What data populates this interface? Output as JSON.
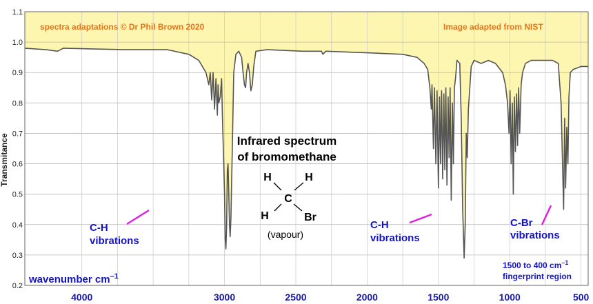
{
  "chart_data": {
    "type": "line",
    "ylabel": "Transmitance",
    "xlabel": "wavenumber  cm",
    "xlabel_sup": "–1",
    "xlim": [
      4400,
      450
    ],
    "ylim": [
      0.2,
      1.1
    ],
    "x_ticks": [
      4000,
      3000,
      2500,
      2000,
      1500,
      1000,
      500
    ],
    "y_ticks": [
      "0.2",
      "0.3",
      "0.4",
      "0.5",
      "0.6",
      "0.7",
      "0.8",
      "0.9",
      "1.0",
      "1.1"
    ],
    "grid": true,
    "fill_color": "#fdf6b0",
    "line_color": "#555555",
    "points": [
      [
        4400,
        0.98
      ],
      [
        4250,
        0.975
      ],
      [
        4170,
        0.97
      ],
      [
        4130,
        0.98
      ],
      [
        3700,
        0.975
      ],
      [
        3400,
        0.975
      ],
      [
        3250,
        0.96
      ],
      [
        3180,
        0.94
      ],
      [
        3130,
        0.9
      ],
      [
        3110,
        0.86
      ],
      [
        3100,
        0.9
      ],
      [
        3090,
        0.81
      ],
      [
        3080,
        0.9
      ],
      [
        3070,
        0.78
      ],
      [
        3060,
        0.88
      ],
      [
        3050,
        0.76
      ],
      [
        3045,
        0.86
      ],
      [
        3040,
        0.8
      ],
      [
        3030,
        0.82
      ],
      [
        3020,
        0.88
      ],
      [
        3015,
        0.76
      ],
      [
        3005,
        0.6
      ],
      [
        3000,
        0.5
      ],
      [
        2995,
        0.35
      ],
      [
        2990,
        0.32
      ],
      [
        2985,
        0.4
      ],
      [
        2980,
        0.58
      ],
      [
        2975,
        0.6
      ],
      [
        2970,
        0.5
      ],
      [
        2965,
        0.4
      ],
      [
        2960,
        0.36
      ],
      [
        2955,
        0.42
      ],
      [
        2945,
        0.65
      ],
      [
        2935,
        0.9
      ],
      [
        2920,
        0.96
      ],
      [
        2900,
        0.97
      ],
      [
        2880,
        0.95
      ],
      [
        2870,
        0.9
      ],
      [
        2860,
        0.86
      ],
      [
        2852,
        0.85
      ],
      [
        2845,
        0.9
      ],
      [
        2835,
        0.93
      ],
      [
        2825,
        0.9
      ],
      [
        2815,
        0.84
      ],
      [
        2805,
        0.86
      ],
      [
        2795,
        0.92
      ],
      [
        2780,
        0.97
      ],
      [
        2700,
        0.975
      ],
      [
        2450,
        0.97
      ],
      [
        2320,
        0.97
      ],
      [
        2310,
        0.96
      ],
      [
        2290,
        0.97
      ],
      [
        2000,
        0.965
      ],
      [
        1750,
        0.96
      ],
      [
        1650,
        0.95
      ],
      [
        1600,
        0.93
      ],
      [
        1575,
        0.91
      ],
      [
        1560,
        0.85
      ],
      [
        1550,
        0.78
      ],
      [
        1545,
        0.86
      ],
      [
        1535,
        0.65
      ],
      [
        1528,
        0.85
      ],
      [
        1518,
        0.6
      ],
      [
        1510,
        0.84
      ],
      [
        1500,
        0.52
      ],
      [
        1492,
        0.82
      ],
      [
        1485,
        0.6
      ],
      [
        1478,
        0.84
      ],
      [
        1470,
        0.55
      ],
      [
        1462,
        0.83
      ],
      [
        1455,
        0.58
      ],
      [
        1448,
        0.85
      ],
      [
        1440,
        0.53
      ],
      [
        1432,
        0.82
      ],
      [
        1425,
        0.62
      ],
      [
        1418,
        0.85
      ],
      [
        1410,
        0.48
      ],
      [
        1402,
        0.8
      ],
      [
        1395,
        0.6
      ],
      [
        1388,
        0.85
      ],
      [
        1380,
        0.88
      ],
      [
        1370,
        0.94
      ],
      [
        1350,
        0.93
      ],
      [
        1340,
        0.75
      ],
      [
        1330,
        0.45
      ],
      [
        1320,
        0.29
      ],
      [
        1312,
        0.4
      ],
      [
        1305,
        0.7
      ],
      [
        1298,
        0.62
      ],
      [
        1290,
        0.78
      ],
      [
        1270,
        0.92
      ],
      [
        1250,
        0.94
      ],
      [
        1200,
        0.93
      ],
      [
        1150,
        0.94
      ],
      [
        1100,
        0.93
      ],
      [
        1050,
        0.9
      ],
      [
        1030,
        0.86
      ],
      [
        1015,
        0.8
      ],
      [
        1005,
        0.7
      ],
      [
        998,
        0.84
      ],
      [
        990,
        0.6
      ],
      [
        982,
        0.8
      ],
      [
        975,
        0.5
      ],
      [
        968,
        0.82
      ],
      [
        960,
        0.64
      ],
      [
        952,
        0.83
      ],
      [
        945,
        0.66
      ],
      [
        938,
        0.85
      ],
      [
        930,
        0.7
      ],
      [
        920,
        0.86
      ],
      [
        910,
        0.9
      ],
      [
        890,
        0.93
      ],
      [
        850,
        0.94
      ],
      [
        700,
        0.94
      ],
      [
        660,
        0.93
      ],
      [
        640,
        0.8
      ],
      [
        630,
        0.6
      ],
      [
        622,
        0.45
      ],
      [
        615,
        0.75
      ],
      [
        608,
        0.52
      ],
      [
        600,
        0.72
      ],
      [
        592,
        0.6
      ],
      [
        585,
        0.82
      ],
      [
        575,
        0.9
      ],
      [
        555,
        0.91
      ],
      [
        500,
        0.92
      ],
      [
        450,
        0.92
      ]
    ]
  },
  "labels": {
    "copyright": "spectra adaptations © Dr Phil Brown 2020",
    "source": "Image adapted from NIST",
    "title_line1": "Infrared spectrum",
    "title_line2": "of bromomethane",
    "state": "(vapour)",
    "ch_left_line1": "C-H",
    "ch_left_line2": "vibrations",
    "ch_mid_line1": "C-H",
    "ch_mid_line2": "vibrations",
    "cbr_line1": "C-Br",
    "cbr_line2": "vibrations",
    "fingerprint_line1_prefix": "1500 to 400 cm",
    "fingerprint_line1_sup": "–1",
    "fingerprint_line2": "fingerprint region"
  },
  "molecule": {
    "center": "C",
    "top_left": "H",
    "top_right": "H",
    "bottom_left": "H",
    "bottom_right": "Br"
  },
  "colors": {
    "label_blue": "#1414c8",
    "pointer_magenta": "#e020e0",
    "banner_orange": "#e8731a"
  }
}
